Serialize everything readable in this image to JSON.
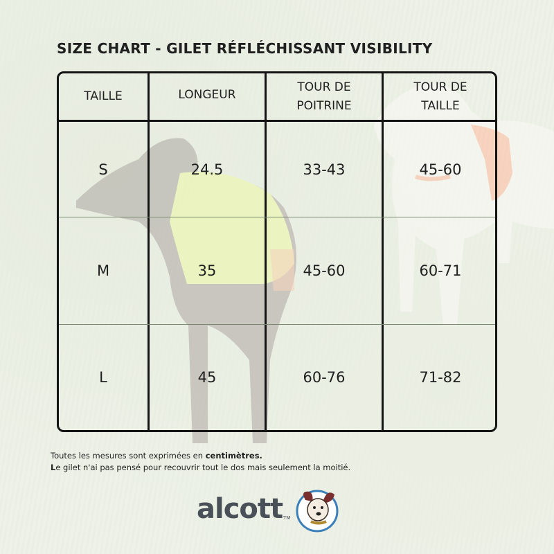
{
  "title": "Size chart - gilet réfléchissant VISIBILITY",
  "table": {
    "headers": [
      "TAILLE",
      "LONGEUR",
      "TOUR DE POITRINE",
      "TOUR DE TAILLE"
    ],
    "rows": [
      [
        "S",
        "24.5",
        "33-43",
        "45-60"
      ],
      [
        "M",
        "35",
        "45-60",
        "60-71"
      ],
      [
        "L",
        "45",
        "60-76",
        "71-82"
      ]
    ]
  },
  "notes": {
    "line1_prefix": "Toutes les mesures sont exprimées en ",
    "line1_bold": "centimètres.",
    "line2_bold": "L",
    "line2_rest": "e gilet n'ai pas pensé pour recouvrir tout le dos mais seulement la moitié."
  },
  "brand": {
    "name": "alcott",
    "tm": "TM"
  },
  "colors": {
    "vest_yellow": "#d8f23a",
    "vest_orange": "#ff6a2a",
    "border": "#141414"
  }
}
